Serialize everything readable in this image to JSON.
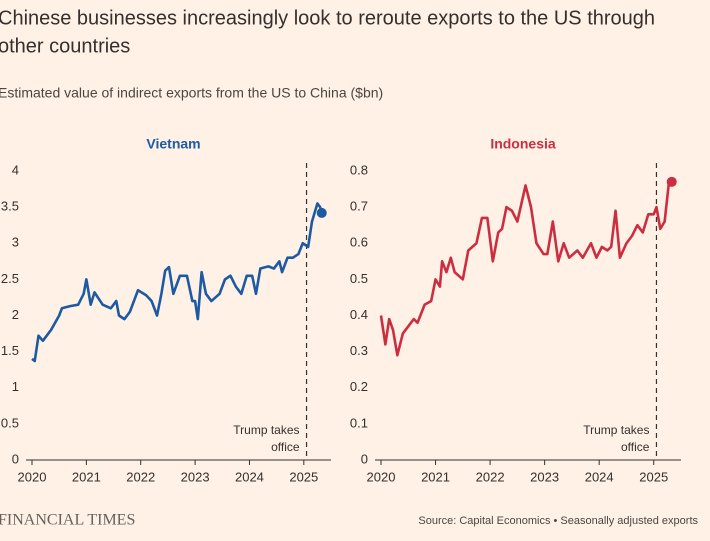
{
  "title": [
    "Chinese businesses increasingly look to reroute exports to the US through",
    "other countries"
  ],
  "subtitle": "Estimated value of indirect exports from the US to China ($bn)",
  "brand": "FINANCIAL TIMES",
  "source": "Source: Capital Economics • Seasonally adjusted exports",
  "chart_data": [
    {
      "type": "line",
      "title": "Vietnam",
      "color": "#1d5aa3",
      "last_point_marker": true,
      "x": [
        2020.0,
        2020.05,
        2020.12,
        2020.2,
        2020.35,
        2020.5,
        2020.55,
        2020.7,
        2020.85,
        2020.95,
        2021.0,
        2021.08,
        2021.15,
        2021.3,
        2021.45,
        2021.55,
        2021.6,
        2021.7,
        2021.8,
        2021.95,
        2022.1,
        2022.2,
        2022.3,
        2022.38,
        2022.45,
        2022.52,
        2022.6,
        2022.72,
        2022.85,
        2022.95,
        2023.0,
        2023.05,
        2023.12,
        2023.2,
        2023.3,
        2023.45,
        2023.55,
        2023.65,
        2023.75,
        2023.85,
        2023.95,
        2024.05,
        2024.12,
        2024.2,
        2024.35,
        2024.45,
        2024.55,
        2024.6,
        2024.7,
        2024.8,
        2024.9,
        2024.98,
        2025.08,
        2025.15,
        2025.25,
        2025.3,
        2025.33
      ],
      "values": [
        1.4,
        1.37,
        1.72,
        1.65,
        1.8,
        2.0,
        2.1,
        2.13,
        2.15,
        2.3,
        2.5,
        2.15,
        2.32,
        2.15,
        2.1,
        2.2,
        2.0,
        1.95,
        2.05,
        2.35,
        2.28,
        2.2,
        2.0,
        2.3,
        2.62,
        2.67,
        2.3,
        2.55,
        2.55,
        2.2,
        2.2,
        1.95,
        2.6,
        2.3,
        2.2,
        2.3,
        2.5,
        2.55,
        2.4,
        2.3,
        2.55,
        2.55,
        2.3,
        2.65,
        2.68,
        2.65,
        2.75,
        2.6,
        2.8,
        2.8,
        2.85,
        3.0,
        2.95,
        3.3,
        3.55,
        3.5,
        3.42
      ],
      "xlim": [
        2020,
        2025.5
      ],
      "xticks": [
        2020,
        2021,
        2022,
        2023,
        2024,
        2025
      ],
      "ylim": [
        0,
        4
      ],
      "yticks": [
        0,
        0.5,
        1,
        1.5,
        2,
        2.5,
        3,
        3.5,
        4
      ],
      "annotation": {
        "x": 2025.05,
        "lines": [
          "Trump takes",
          "office"
        ]
      }
    },
    {
      "type": "line",
      "title": "Indonesia",
      "color": "#cc2e41",
      "last_point_marker": true,
      "x": [
        2020.0,
        2020.08,
        2020.15,
        2020.22,
        2020.3,
        2020.4,
        2020.5,
        2020.6,
        2020.67,
        2020.8,
        2020.92,
        2021.0,
        2021.08,
        2021.12,
        2021.2,
        2021.28,
        2021.35,
        2021.5,
        2021.6,
        2021.75,
        2021.85,
        2021.95,
        2022.05,
        2022.15,
        2022.22,
        2022.3,
        2022.4,
        2022.5,
        2022.65,
        2022.75,
        2022.85,
        2022.98,
        2023.05,
        2023.15,
        2023.25,
        2023.35,
        2023.45,
        2023.6,
        2023.7,
        2023.85,
        2023.95,
        2024.05,
        2024.15,
        2024.22,
        2024.3,
        2024.38,
        2024.5,
        2024.6,
        2024.7,
        2024.8,
        2024.9,
        2025.0,
        2025.05,
        2025.12,
        2025.2,
        2025.28,
        2025.33
      ],
      "values": [
        0.4,
        0.32,
        0.39,
        0.36,
        0.29,
        0.35,
        0.37,
        0.39,
        0.38,
        0.43,
        0.44,
        0.5,
        0.48,
        0.55,
        0.52,
        0.56,
        0.52,
        0.5,
        0.58,
        0.6,
        0.67,
        0.67,
        0.55,
        0.63,
        0.64,
        0.7,
        0.69,
        0.66,
        0.76,
        0.7,
        0.6,
        0.57,
        0.57,
        0.66,
        0.55,
        0.6,
        0.56,
        0.58,
        0.56,
        0.6,
        0.56,
        0.59,
        0.58,
        0.59,
        0.69,
        0.56,
        0.6,
        0.62,
        0.65,
        0.63,
        0.68,
        0.68,
        0.7,
        0.64,
        0.66,
        0.77,
        0.77
      ],
      "xlim": [
        2020,
        2025.5
      ],
      "xticks": [
        2020,
        2021,
        2022,
        2023,
        2024,
        2025
      ],
      "ylim": [
        0,
        0.8
      ],
      "yticks": [
        0,
        0.1,
        0.2,
        0.3,
        0.4,
        0.5,
        0.6,
        0.7,
        0.8
      ],
      "annotation": {
        "x": 2025.05,
        "lines": [
          "Trump takes",
          "office"
        ]
      }
    }
  ]
}
